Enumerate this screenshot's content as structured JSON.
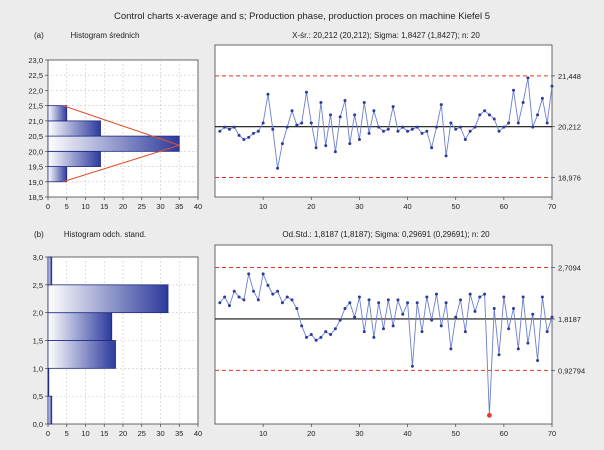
{
  "title": "Control charts x-average and s; Production phase, production proces on machine Kiefel 5",
  "chart_data": [
    {
      "panel_tag": "(a)",
      "type": "bar",
      "orientation": "horizontal",
      "title": "Histogram średnich",
      "bin_edges": [
        19.0,
        19.5,
        20.0,
        20.5,
        21.0,
        21.5
      ],
      "counts": [
        5,
        14,
        35,
        14,
        5
      ],
      "normal_curve": {
        "peak_y": 20.2,
        "peak_count": 35,
        "tails": [
          [
            19.0,
            4
          ],
          [
            21.5,
            4
          ]
        ]
      },
      "xlim": [
        0,
        40
      ],
      "ylim": [
        18.5,
        23.0
      ],
      "xticks": [
        "0",
        "5",
        "10",
        "15",
        "20",
        "25",
        "30",
        "35",
        "40"
      ],
      "yticks": [
        "18,5",
        "19,0",
        "19,5",
        "20,0",
        "20,5",
        "21,0",
        "21,5",
        "22,0",
        "22,5",
        "23,0"
      ],
      "grid": true
    },
    {
      "type": "line",
      "title": "X-śr.: 20,212 (20,212); Sigma: 1,8427 (1,8427); n: 20",
      "x": [
        1,
        2,
        3,
        4,
        5,
        6,
        7,
        8,
        9,
        10,
        11,
        12,
        13,
        14,
        15,
        16,
        17,
        18,
        19,
        20,
        21,
        22,
        23,
        24,
        25,
        26,
        27,
        28,
        29,
        30,
        31,
        32,
        33,
        34,
        35,
        36,
        37,
        38,
        39,
        40,
        41,
        42,
        43,
        44,
        45,
        46,
        47,
        48,
        49,
        50,
        51,
        52,
        53,
        54,
        55,
        56,
        57,
        58,
        59,
        60,
        61,
        62,
        63,
        64,
        65,
        66,
        67,
        68,
        69,
        70
      ],
      "y": [
        20.1,
        20.2,
        20.15,
        20.2,
        20.0,
        19.9,
        19.95,
        20.05,
        20.1,
        20.3,
        21.0,
        20.15,
        19.2,
        19.8,
        20.2,
        20.6,
        20.25,
        20.3,
        21.05,
        20.3,
        19.7,
        20.8,
        19.75,
        20.5,
        19.6,
        20.45,
        20.85,
        19.8,
        20.5,
        19.9,
        20.8,
        20.05,
        20.6,
        20.2,
        20.1,
        20.15,
        20.7,
        20.1,
        20.2,
        20.1,
        20.15,
        20.2,
        20.05,
        20.1,
        19.7,
        20.2,
        20.75,
        19.5,
        20.3,
        20.15,
        20.2,
        19.9,
        20.1,
        20.2,
        20.5,
        20.6,
        20.5,
        20.4,
        20.1,
        20.2,
        20.3,
        21.1,
        20.3,
        20.8,
        21.4,
        20.2,
        20.5,
        20.9,
        20.3,
        21.2
      ],
      "center_line": 20.212,
      "ucl": 21.448,
      "lcl": 18.976,
      "center_label": "20,212",
      "ucl_label": "21,448",
      "lcl_label": "18,976",
      "xlim": [
        0,
        70
      ],
      "ylim": [
        18.5,
        22.2
      ],
      "xticks": [
        "10",
        "20",
        "30",
        "40",
        "50",
        "60",
        "70"
      ]
    },
    {
      "panel_tag": "(b)",
      "type": "bar",
      "orientation": "horizontal",
      "title": "Histogram odch. stand.",
      "bin_edges": [
        0.0,
        0.5,
        1.0,
        1.5,
        2.0,
        2.5,
        3.0
      ],
      "counts": [
        1,
        0,
        18,
        17,
        32,
        1
      ],
      "xlim": [
        0,
        40
      ],
      "ylim": [
        0.0,
        3.0
      ],
      "xticks": [
        "0",
        "5",
        "10",
        "15",
        "20",
        "25",
        "30",
        "35",
        "40"
      ],
      "yticks": [
        "0,0",
        "0,5",
        "1,0",
        "1,5",
        "2,0",
        "2,5",
        "3,0"
      ],
      "grid": true
    },
    {
      "type": "line",
      "title": "Od.Std.: 1,8187 (1,8187); Sigma: 0,29691 (0,29691); n: 20",
      "x": [
        1,
        2,
        3,
        4,
        5,
        6,
        7,
        8,
        9,
        10,
        11,
        12,
        13,
        14,
        15,
        16,
        17,
        18,
        19,
        20,
        21,
        22,
        23,
        24,
        25,
        26,
        27,
        28,
        29,
        30,
        31,
        32,
        33,
        34,
        35,
        36,
        37,
        38,
        39,
        40,
        41,
        42,
        43,
        44,
        45,
        46,
        47,
        48,
        49,
        50,
        51,
        52,
        53,
        54,
        55,
        56,
        57,
        58,
        59,
        60,
        61,
        62,
        63,
        64,
        65,
        66,
        67,
        68,
        69,
        70
      ],
      "y": [
        2.1,
        2.2,
        2.05,
        2.3,
        2.2,
        2.15,
        2.6,
        2.3,
        2.15,
        2.6,
        2.4,
        2.25,
        2.3,
        2.1,
        2.2,
        2.15,
        2.0,
        1.7,
        1.5,
        1.55,
        1.45,
        1.5,
        1.6,
        1.55,
        1.65,
        1.8,
        2.0,
        2.1,
        1.85,
        2.2,
        1.6,
        2.15,
        1.5,
        2.1,
        1.65,
        2.15,
        1.7,
        2.15,
        1.9,
        2.1,
        1.0,
        2.1,
        1.6,
        2.2,
        1.8,
        2.25,
        1.7,
        2.1,
        1.3,
        1.85,
        2.15,
        1.6,
        2.25,
        1.95,
        2.2,
        2.25,
        1.5,
        2.0,
        1.2,
        2.2,
        1.65,
        2.0,
        1.3,
        2.2,
        1.4,
        1.9,
        1.1,
        2.2,
        1.6,
        1.85
      ],
      "outliers": [
        {
          "x": 57,
          "y": 0.15
        }
      ],
      "center_line": 1.8187,
      "ucl": 2.7094,
      "lcl": 0.92794,
      "center_label": "1,8187",
      "ucl_label": "2,7094",
      "lcl_label": "0,92794",
      "xlim": [
        0,
        70
      ],
      "ylim": [
        0.0,
        3.1
      ],
      "xticks": [
        "10",
        "20",
        "30",
        "40",
        "50",
        "60",
        "70"
      ]
    }
  ]
}
